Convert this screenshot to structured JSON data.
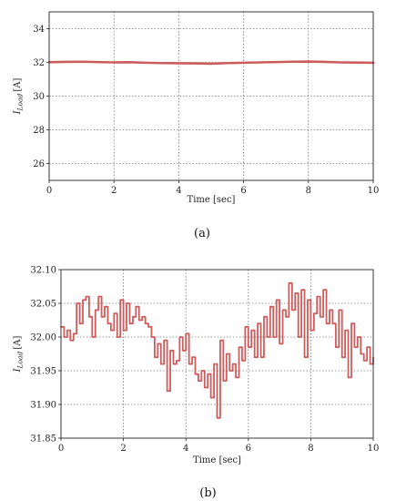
{
  "chart_data": [
    {
      "type": "line",
      "caption": "(a)",
      "xlabel": "Time [sec]",
      "ylabel": "I_Load [A]",
      "ylabel_base": "I",
      "ylabel_sub": "Load",
      "ylabel_unit": "[A]",
      "xlim": [
        0,
        10
      ],
      "ylim": [
        25,
        35
      ],
      "xticks": [
        "0",
        "2",
        "4",
        "6",
        "8",
        "10"
      ],
      "yticks": [
        "26",
        "28",
        "30",
        "32",
        "34"
      ],
      "grid": true,
      "line_color": "#cd5c5c",
      "x": [
        0,
        0.5,
        1,
        1.5,
        2,
        2.5,
        3,
        3.5,
        4,
        4.5,
        5,
        5.5,
        6,
        6.5,
        7,
        7.5,
        8,
        8.5,
        9,
        9.5,
        10
      ],
      "y": [
        32.01,
        32.03,
        32.04,
        32.02,
        32.0,
        32.01,
        31.98,
        31.96,
        31.95,
        31.94,
        31.92,
        31.96,
        31.98,
        32.0,
        32.02,
        32.04,
        32.05,
        32.03,
        32.0,
        31.99,
        31.98
      ]
    },
    {
      "type": "line",
      "caption": "(b)",
      "xlabel": "Time [sec]",
      "ylabel": "I_Load [A]",
      "ylabel_base": "I",
      "ylabel_sub": "Load",
      "ylabel_unit": "[A]",
      "xlim": [
        0,
        10
      ],
      "ylim": [
        31.85,
        32.1
      ],
      "xticks": [
        "0",
        "2",
        "4",
        "6",
        "8",
        "10"
      ],
      "yticks": [
        "31.85",
        "31.90",
        "31.95",
        "32.00",
        "32.05",
        "32.10"
      ],
      "grid": true,
      "line_color": "#cd5c5c",
      "step": true,
      "x": [
        0,
        0.1,
        0.2,
        0.3,
        0.4,
        0.5,
        0.6,
        0.7,
        0.8,
        0.9,
        1.0,
        1.1,
        1.2,
        1.3,
        1.4,
        1.5,
        1.6,
        1.7,
        1.8,
        1.9,
        2.0,
        2.1,
        2.2,
        2.3,
        2.4,
        2.5,
        2.6,
        2.7,
        2.8,
        2.9,
        3.0,
        3.1,
        3.2,
        3.3,
        3.4,
        3.5,
        3.6,
        3.7,
        3.8,
        3.9,
        4.0,
        4.1,
        4.2,
        4.3,
        4.4,
        4.5,
        4.6,
        4.7,
        4.8,
        4.9,
        5.0,
        5.1,
        5.2,
        5.3,
        5.4,
        5.5,
        5.6,
        5.7,
        5.8,
        5.9,
        6.0,
        6.1,
        6.2,
        6.3,
        6.4,
        6.5,
        6.6,
        6.7,
        6.8,
        6.9,
        7.0,
        7.1,
        7.2,
        7.3,
        7.4,
        7.5,
        7.6,
        7.7,
        7.8,
        7.9,
        8.0,
        8.1,
        8.2,
        8.3,
        8.4,
        8.5,
        8.6,
        8.7,
        8.8,
        8.9,
        9.0,
        9.1,
        9.2,
        9.3,
        9.4,
        9.5,
        9.6,
        9.7,
        9.8,
        9.9,
        10.0
      ],
      "y": [
        32.015,
        32.0,
        32.01,
        31.995,
        32.005,
        32.05,
        32.02,
        32.055,
        32.06,
        32.03,
        32.0,
        32.04,
        32.06,
        32.03,
        32.045,
        32.02,
        32.01,
        32.035,
        32.0,
        32.055,
        32.01,
        32.05,
        32.02,
        32.03,
        32.045,
        32.025,
        32.03,
        32.02,
        32.015,
        32.0,
        31.97,
        31.99,
        31.96,
        31.995,
        31.92,
        31.98,
        31.96,
        31.965,
        32.0,
        31.98,
        32.005,
        31.96,
        31.97,
        31.945,
        31.935,
        31.95,
        31.925,
        31.945,
        31.91,
        31.96,
        31.88,
        31.995,
        31.935,
        31.975,
        31.95,
        31.96,
        31.94,
        31.985,
        31.965,
        32.015,
        31.985,
        32.01,
        31.97,
        32.02,
        31.97,
        32.03,
        32.0,
        32.045,
        32.0,
        32.055,
        31.99,
        32.04,
        32.03,
        32.08,
        32.04,
        32.065,
        32.0,
        32.07,
        31.97,
        32.055,
        32.01,
        32.035,
        32.06,
        32.03,
        32.07,
        32.02,
        32.04,
        32.02,
        31.985,
        32.04,
        31.97,
        32.01,
        31.94,
        32.02,
        31.985,
        32.0,
        31.975,
        31.965,
        31.985,
        31.96,
        31.97
      ]
    }
  ]
}
